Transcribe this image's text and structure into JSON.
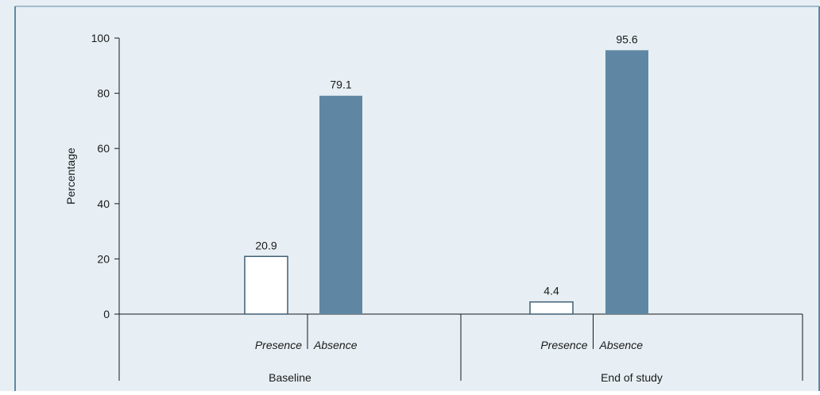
{
  "chart_data": {
    "type": "bar",
    "ylabel": "Percentage",
    "ylim": [
      0,
      100
    ],
    "yticks": [
      0,
      20,
      40,
      60,
      80,
      100
    ],
    "groups": [
      {
        "name": "Baseline",
        "bars": [
          {
            "category": "Presence",
            "value": 20.9,
            "label": "20.9"
          },
          {
            "category": "Absence",
            "value": 79.1,
            "label": "79.1"
          }
        ]
      },
      {
        "name": "End of study",
        "bars": [
          {
            "category": "Presence",
            "value": 4.4,
            "label": "4.4"
          },
          {
            "category": "Absence",
            "value": 95.6,
            "label": "95.6"
          }
        ]
      }
    ],
    "colors": {
      "background": "#e7eff4",
      "border": "#5f87a3",
      "presence_fill": "#ffffff",
      "presence_stroke": "#3e5f77",
      "absence_fill": "#5f87a3",
      "axis": "#1a1a1a"
    },
    "grid": false,
    "legend": "none"
  }
}
